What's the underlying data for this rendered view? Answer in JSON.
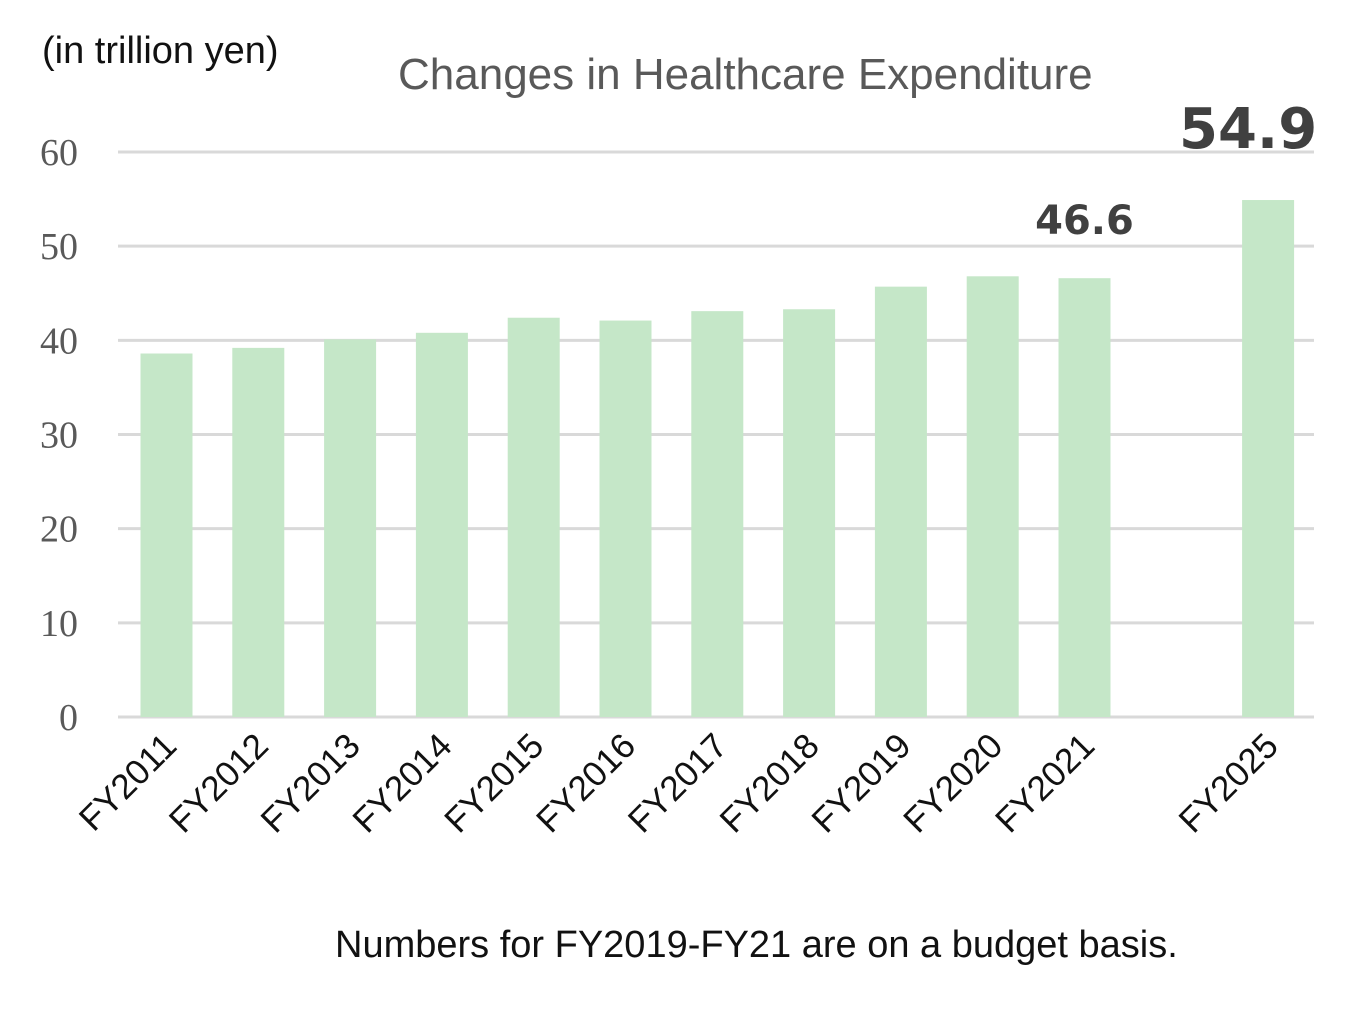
{
  "unit_label": "(in trillion yen)",
  "footnote": "Numbers for FY2019-FY21 are on a budget basis.",
  "colors": {
    "bar": "#c5e7c8",
    "grid": "#d9d9d9",
    "axis_text": "#595959",
    "label_text": "#404040"
  },
  "chart_data": {
    "type": "bar",
    "title": "Changes in Healthcare Expenditure",
    "xlabel": "",
    "ylabel": "(in trillion yen)",
    "ylim": [
      0,
      60
    ],
    "yticks": [
      0,
      10,
      20,
      30,
      40,
      50,
      60
    ],
    "grid": true,
    "legend": "none",
    "categories": [
      "FY2011",
      "FY2012",
      "FY2013",
      "FY2014",
      "FY2015",
      "FY2016",
      "FY2017",
      "FY2018",
      "FY2019",
      "FY2020",
      "FY2021",
      "FY2025"
    ],
    "values": [
      38.6,
      39.2,
      40.1,
      40.8,
      42.4,
      42.1,
      43.1,
      43.3,
      45.7,
      46.8,
      46.6,
      54.9
    ],
    "data_labels": [
      {
        "category": "FY2021",
        "text": "46.6"
      },
      {
        "category": "FY2025",
        "text": "54.9"
      }
    ]
  }
}
